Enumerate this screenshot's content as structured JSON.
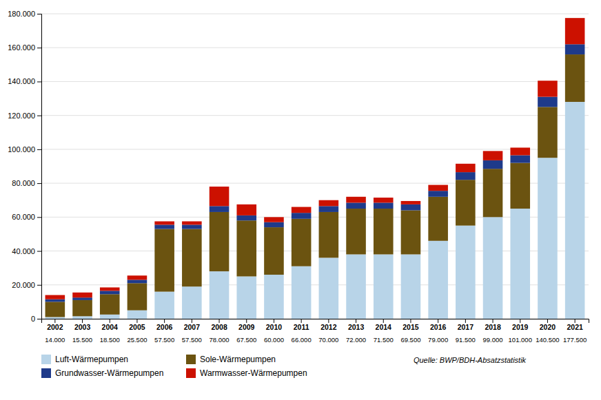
{
  "chart_data": {
    "type": "bar",
    "stacked": true,
    "categories": [
      "2002",
      "2003",
      "2004",
      "2005",
      "2006",
      "2007",
      "2008",
      "2009",
      "2010",
      "2011",
      "2012",
      "2013",
      "2014",
      "2015",
      "2016",
      "2017",
      "2018",
      "2019",
      "2020",
      "2021"
    ],
    "series": [
      {
        "name": "Luft-Wärmepumpen",
        "color": "#b8d4e8",
        "values": [
          1000,
          1500,
          2500,
          5000,
          16000,
          19000,
          28000,
          25000,
          26000,
          31000,
          36000,
          38000,
          38000,
          38000,
          46000,
          55000,
          60000,
          65000,
          95000,
          128000
        ]
      },
      {
        "name": "Sole-Wärmepumpen",
        "color": "#6b5310",
        "values": [
          9000,
          9500,
          12000,
          16000,
          37000,
          34000,
          35000,
          33000,
          28000,
          28000,
          27000,
          27000,
          27000,
          26000,
          26000,
          27000,
          28500,
          27000,
          30000,
          28000
        ]
      },
      {
        "name": "Grundwasser-Wärmepumpen",
        "color": "#1e3a8a",
        "values": [
          1500,
          1500,
          2000,
          2000,
          2500,
          2500,
          3500,
          3000,
          3000,
          3500,
          3500,
          3500,
          3500,
          3500,
          3500,
          4500,
          5000,
          4500,
          6000,
          6000
        ]
      },
      {
        "name": "Warmwasser-Wärmepumpen",
        "color": "#cc1100",
        "values": [
          2500,
          3000,
          2000,
          2500,
          2000,
          2000,
          11500,
          6500,
          3000,
          3500,
          3500,
          3500,
          3000,
          2000,
          3500,
          5000,
          5500,
          4500,
          9500,
          15500
        ]
      }
    ],
    "total_labels": [
      "14.000",
      "15.500",
      "18.500",
      "25.500",
      "57.500",
      "57.500",
      "78.000",
      "67.500",
      "60.000",
      "66.000",
      "70.000",
      "72.000",
      "71.500",
      "69.500",
      "79.000",
      "91.500",
      "99.000",
      "101.000",
      "140.500",
      "177.500"
    ],
    "annotations": [
      "Quelle: BWP/BDH-Absatzstatistik"
    ],
    "ylim": [
      0,
      180000
    ],
    "yticks": [
      0,
      {
        "value": 20000,
        "label": "20.000"
      },
      {
        "value": 40000,
        "label": "40.000"
      },
      {
        "value": 60000,
        "label": "60.000"
      },
      {
        "value": 80000,
        "label": "80.000"
      },
      {
        "value": 100000,
        "label": "100.000"
      },
      {
        "value": 120000,
        "label": "120.000"
      },
      {
        "value": 140000,
        "label": "140.000"
      },
      {
        "value": 160000,
        "label": "160.000"
      },
      {
        "value": 180000,
        "label": "180.000"
      }
    ],
    "grid": true,
    "legend": "bottom"
  }
}
